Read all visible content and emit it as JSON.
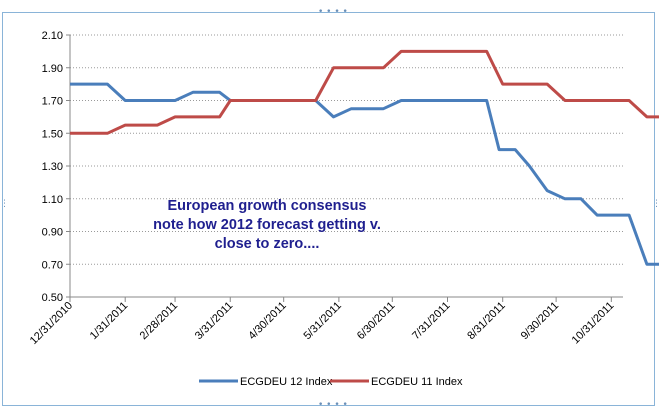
{
  "chart_data": {
    "type": "line",
    "title": "",
    "xlabel": "",
    "ylabel": "",
    "x_tick_labels": [
      "12/31/2010",
      "1/31/2011",
      "2/28/2011",
      "3/31/2011",
      "4/30/2011",
      "5/31/2011",
      "6/30/2011",
      "7/31/2011",
      "8/31/2011",
      "9/30/2011",
      "10/31/2011"
    ],
    "ylim": [
      0.5,
      2.1
    ],
    "y_ticks": [
      "0.50",
      "0.70",
      "0.90",
      "1.10",
      "1.30",
      "1.50",
      "1.70",
      "1.90",
      "2.10"
    ],
    "grid": "horizontal dotted",
    "legend_position": "bottom",
    "annotation": [
      "European growth consensus",
      "note how 2012 forecast getting v.",
      "close to zero...."
    ],
    "series": [
      {
        "name": "ECGDEU 12 Index",
        "color": "#4a7ebb",
        "points": [
          [
            "12/31/2010",
            1.8
          ],
          [
            "1/21/2011",
            1.8
          ],
          [
            "1/31/2011",
            1.7
          ],
          [
            "2/28/2011",
            1.7
          ],
          [
            "3/10/2011",
            1.75
          ],
          [
            "3/25/2011",
            1.75
          ],
          [
            "3/31/2011",
            1.7
          ],
          [
            "5/18/2011",
            1.7
          ],
          [
            "5/28/2011",
            1.6
          ],
          [
            "6/7/2011",
            1.65
          ],
          [
            "6/25/2011",
            1.65
          ],
          [
            "7/5/2011",
            1.7
          ],
          [
            "8/22/2011",
            1.7
          ],
          [
            "8/29/2011",
            1.4
          ],
          [
            "9/7/2011",
            1.4
          ],
          [
            "9/15/2011",
            1.3
          ],
          [
            "9/25/2011",
            1.15
          ],
          [
            "10/5/2011",
            1.1
          ],
          [
            "10/14/2011",
            1.1
          ],
          [
            "10/23/2011",
            1.0
          ],
          [
            "11/10/2011",
            1.0
          ],
          [
            "11/20/2011",
            0.7
          ],
          [
            "11/28/2011",
            0.7
          ]
        ]
      },
      {
        "name": "ECGDEU 11 Index",
        "color": "#be4b48",
        "points": [
          [
            "12/31/2010",
            1.5
          ],
          [
            "1/21/2011",
            1.5
          ],
          [
            "1/31/2011",
            1.55
          ],
          [
            "2/18/2011",
            1.55
          ],
          [
            "2/28/2011",
            1.6
          ],
          [
            "3/25/2011",
            1.6
          ],
          [
            "3/31/2011",
            1.7
          ],
          [
            "5/18/2011",
            1.7
          ],
          [
            "5/28/2011",
            1.9
          ],
          [
            "6/25/2011",
            1.9
          ],
          [
            "7/5/2011",
            2.0
          ],
          [
            "8/22/2011",
            2.0
          ],
          [
            "8/31/2011",
            1.8
          ],
          [
            "9/25/2011",
            1.8
          ],
          [
            "10/5/2011",
            1.7
          ],
          [
            "11/10/2011",
            1.7
          ],
          [
            "11/20/2011",
            1.6
          ],
          [
            "11/28/2011",
            1.6
          ]
        ]
      }
    ]
  }
}
